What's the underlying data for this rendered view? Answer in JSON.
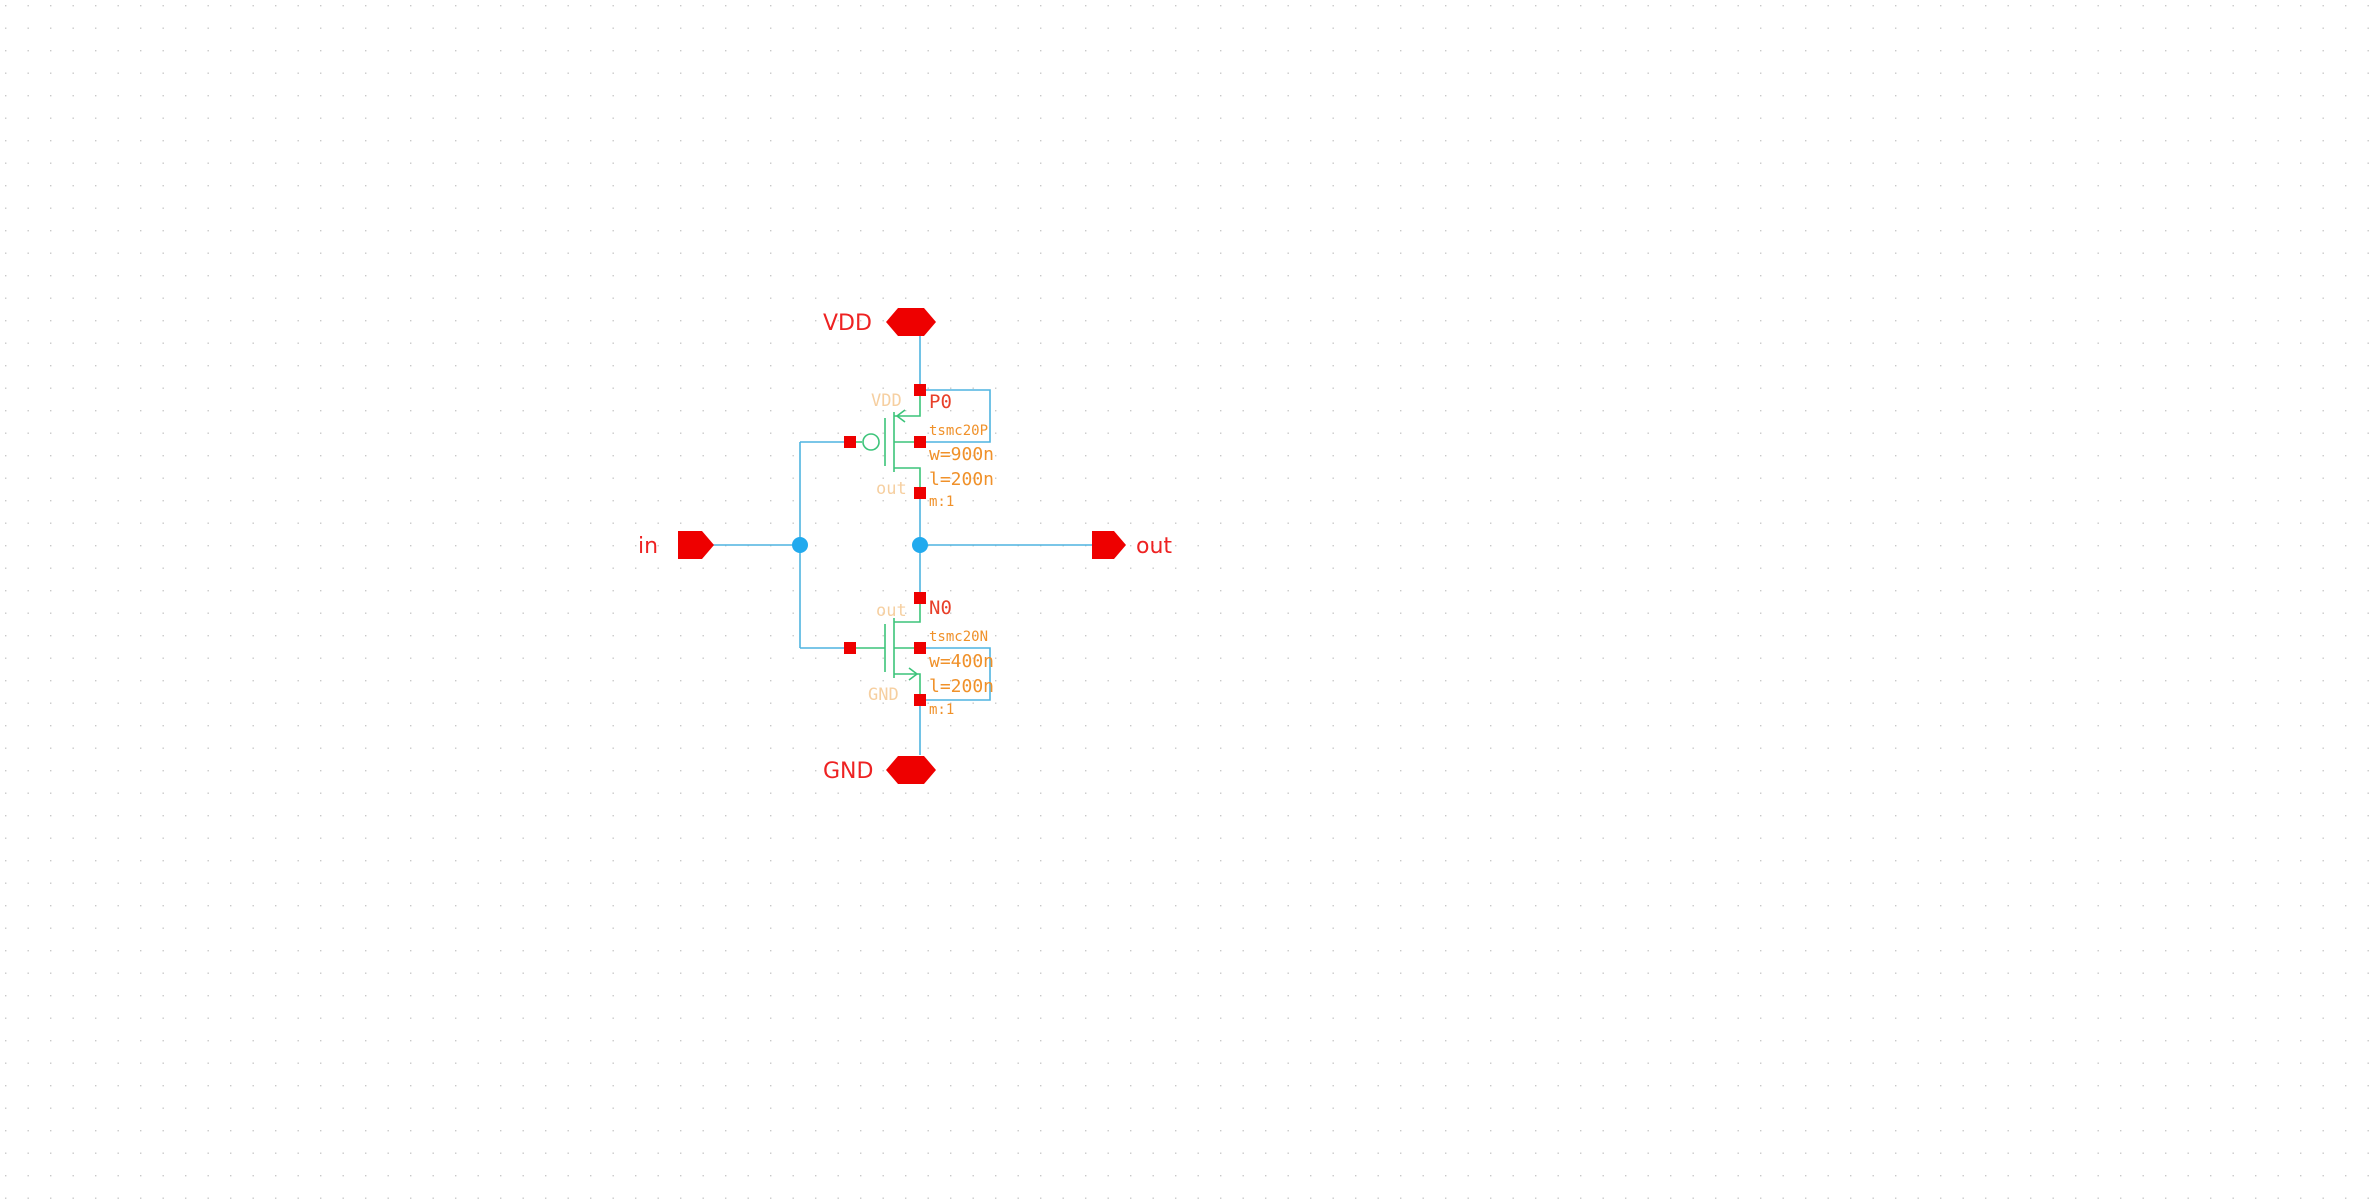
{
  "ports": {
    "vdd": "VDD",
    "gnd": "GND",
    "in": "in",
    "out": "out"
  },
  "pmos": {
    "instance": "P0",
    "model": "tsmc20P",
    "w": "w=900n",
    "l": "l=200n",
    "m": "m:1",
    "pin_top": "VDD",
    "pin_bottom": "out"
  },
  "nmos": {
    "instance": "N0",
    "model": "tsmc20N",
    "w": "w=400n",
    "l": "l=200n",
    "m": "m:1",
    "pin_top": "out",
    "pin_bottom": "GND"
  },
  "colors": {
    "wire": "#4fb4e0",
    "device": "#3cc47a",
    "pin": "#ee0000",
    "label": "#ee2222",
    "param": "#f0912a"
  }
}
